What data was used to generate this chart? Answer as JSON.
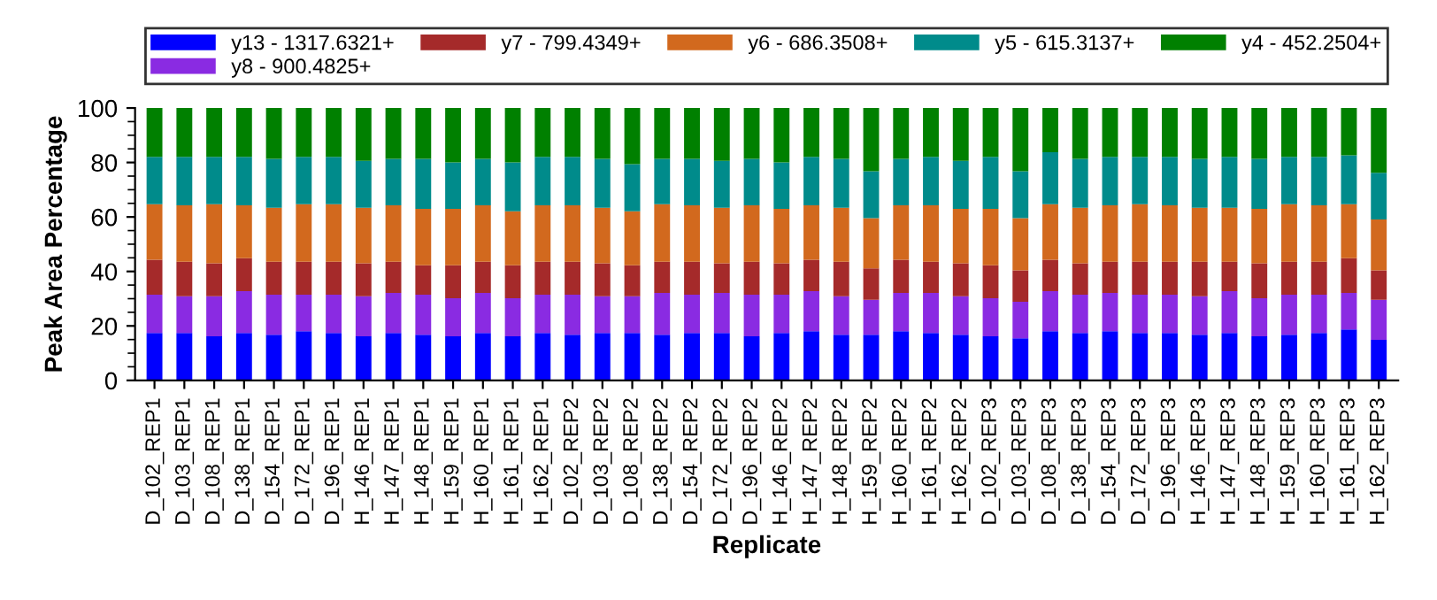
{
  "chart_data": {
    "type": "bar",
    "stacked": true,
    "xlabel": "Replicate",
    "ylabel": "Peak Area Percentage",
    "categories": [
      "D_102_REP1",
      "D_103_REP1",
      "D_108_REP1",
      "D_138_REP1",
      "D_154_REP1",
      "D_172_REP1",
      "D_196_REP1",
      "H_146_REP1",
      "H_147_REP1",
      "H_148_REP1",
      "H_159_REP1",
      "H_160_REP1",
      "H_161_REP1",
      "H_162_REP1",
      "D_102_REP2",
      "D_103_REP2",
      "D_108_REP2",
      "D_138_REP2",
      "D_154_REP2",
      "D_172_REP2",
      "D_196_REP2",
      "H_146_REP2",
      "H_147_REP2",
      "H_148_REP2",
      "H_159_REP2",
      "H_160_REP2",
      "H_161_REP2",
      "H_162_REP2",
      "D_102_REP3",
      "D_103_REP3",
      "D_108_REP3",
      "D_138_REP3",
      "D_154_REP3",
      "D_172_REP3",
      "D_196_REP3",
      "H_146_REP3",
      "H_147_REP3",
      "H_148_REP3",
      "H_159_REP3",
      "H_160_REP3",
      "H_161_REP3",
      "H_162_REP3"
    ],
    "series": [
      {
        "name": "y13 - 1317.6321+",
        "color": "#0000ff",
        "values": [
          17.4,
          17.4,
          16.2,
          17.4,
          16.8,
          18.1,
          17.4,
          16.2,
          17.4,
          16.8,
          16.2,
          17.4,
          16.2,
          17.4,
          16.8,
          17.4,
          17.4,
          16.8,
          17.4,
          17.4,
          16.2,
          17.4,
          18.1,
          16.8,
          16.8,
          18.1,
          17.4,
          16.8,
          16.2,
          15.5,
          18.1,
          17.4,
          18.1,
          17.4,
          17.4,
          16.8,
          17.4,
          16.2,
          16.8,
          17.4,
          18.7,
          14.9
        ]
      },
      {
        "name": "y8 - 900.4825+",
        "color": "#8a2be2",
        "values": [
          14.1,
          13.5,
          14.7,
          15.4,
          14.7,
          13.4,
          14.1,
          14.7,
          14.7,
          14.7,
          14.0,
          14.7,
          14.0,
          14.1,
          14.7,
          13.5,
          13.5,
          15.3,
          14.1,
          14.7,
          15.3,
          14.1,
          14.7,
          14.1,
          12.8,
          14.0,
          14.7,
          14.1,
          14.0,
          13.4,
          14.7,
          14.1,
          14.0,
          14.1,
          14.1,
          14.1,
          15.4,
          14.0,
          14.7,
          14.1,
          13.4,
          14.7
        ]
      },
      {
        "name": "y7 - 799.4349+",
        "color": "#a52a2a",
        "values": [
          12.8,
          12.7,
          12.1,
          12.1,
          12.1,
          12.1,
          12.1,
          12.1,
          11.5,
          10.8,
          12.1,
          11.5,
          12.1,
          12.1,
          12.1,
          12.1,
          11.4,
          11.5,
          12.1,
          10.9,
          12.1,
          11.5,
          11.5,
          12.7,
          11.5,
          12.2,
          11.5,
          12.1,
          12.1,
          11.5,
          11.5,
          11.5,
          11.5,
          12.1,
          12.1,
          12.7,
          10.8,
          12.8,
          12.1,
          12.1,
          12.8,
          10.8
        ]
      },
      {
        "name": "y6 - 686.3508+",
        "color": "#d2691e",
        "values": [
          20.4,
          20.7,
          21.7,
          19.4,
          19.8,
          21.1,
          21.1,
          20.4,
          20.7,
          20.7,
          20.7,
          20.7,
          19.8,
          20.7,
          20.7,
          20.4,
          19.8,
          21.1,
          20.7,
          20.4,
          20.7,
          20.0,
          20.0,
          19.8,
          18.5,
          20.0,
          20.7,
          20.0,
          20.7,
          19.2,
          20.4,
          20.4,
          20.7,
          21.1,
          20.7,
          19.8,
          19.8,
          20.0,
          21.1,
          20.7,
          19.8,
          18.7
        ]
      },
      {
        "name": "y5 - 615.3137+",
        "color": "#008b8b",
        "values": [
          17.4,
          17.8,
          17.4,
          17.8,
          17.9,
          17.4,
          17.4,
          17.2,
          17.0,
          18.3,
          17.0,
          17.0,
          17.9,
          17.8,
          17.8,
          17.9,
          17.3,
          16.6,
          17.0,
          17.2,
          17.0,
          17.0,
          17.8,
          17.9,
          17.2,
          17.0,
          17.8,
          17.6,
          19.1,
          17.2,
          19.1,
          17.9,
          17.8,
          17.4,
          17.8,
          17.9,
          18.7,
          18.3,
          17.4,
          17.8,
          17.9,
          17.1
        ]
      },
      {
        "name": "y4 - 452.2504+",
        "color": "#008000",
        "values": [
          17.9,
          17.9,
          17.9,
          17.9,
          18.7,
          17.9,
          17.9,
          19.4,
          18.7,
          18.7,
          20.0,
          18.7,
          20.0,
          17.9,
          17.9,
          18.7,
          20.6,
          18.7,
          18.7,
          19.4,
          18.7,
          20.0,
          17.9,
          18.7,
          23.2,
          18.7,
          17.9,
          19.4,
          17.9,
          23.2,
          16.2,
          18.7,
          17.9,
          17.9,
          17.9,
          18.7,
          17.9,
          18.7,
          17.9,
          17.9,
          17.4,
          23.8
        ]
      }
    ],
    "ylim": [
      0,
      100
    ],
    "yticks": [
      0,
      20,
      40,
      60,
      80,
      100
    ],
    "grid": false,
    "legend": "top"
  }
}
